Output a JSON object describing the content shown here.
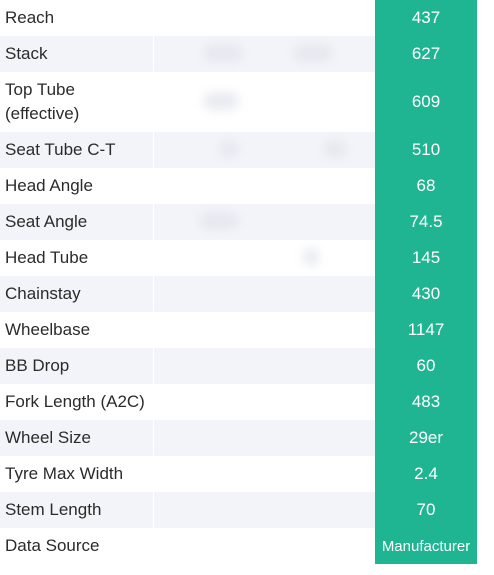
{
  "rows": [
    {
      "label": "Reach",
      "value": "437"
    },
    {
      "label": "Stack",
      "value": "627"
    },
    {
      "label": "Top Tube\n(effective)",
      "value": "609"
    },
    {
      "label": "Seat Tube C-T",
      "value": "510"
    },
    {
      "label": "Head Angle",
      "value": "68"
    },
    {
      "label": "Seat Angle",
      "value": "74.5"
    },
    {
      "label": "Head Tube",
      "value": "145"
    },
    {
      "label": "Chainstay",
      "value": "430"
    },
    {
      "label": "Wheelbase",
      "value": "1147"
    },
    {
      "label": "BB Drop",
      "value": "60"
    },
    {
      "label": "Fork Length (A2C)",
      "value": "483"
    },
    {
      "label": "Wheel Size",
      "value": "29er"
    },
    {
      "label": "Tyre Max Width",
      "value": "2.4"
    },
    {
      "label": "Stem Length",
      "value": "70"
    },
    {
      "label": "Data Source",
      "value": "Manufacturer"
    }
  ],
  "colors": {
    "highlight_column": "#1fb593",
    "stripe": "#f3f4f9"
  }
}
